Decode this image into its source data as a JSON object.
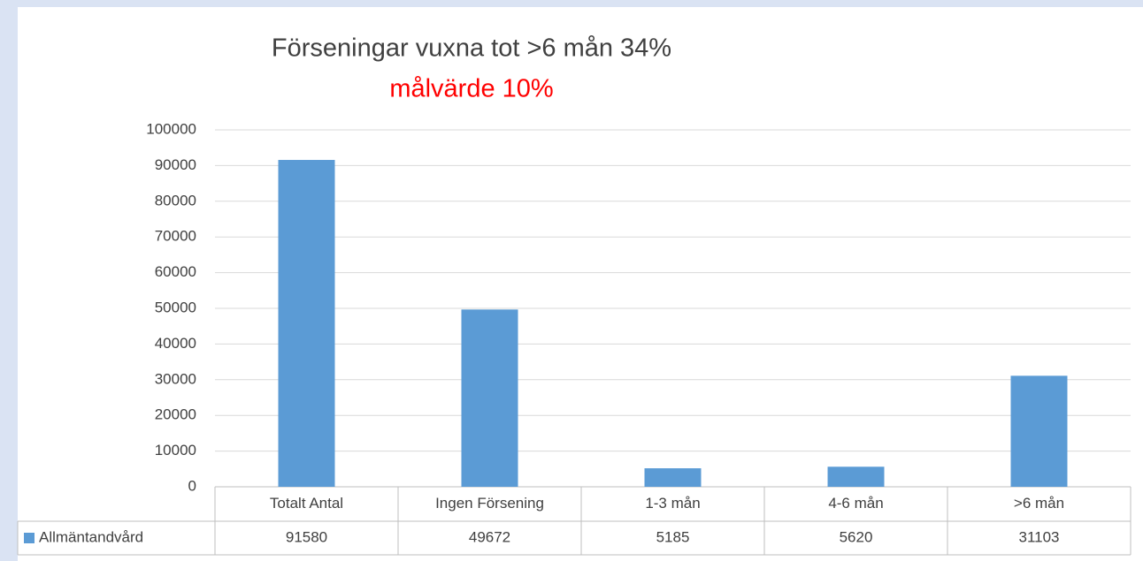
{
  "chart_data": {
    "type": "bar",
    "title": "Förseningar vuxna tot >6 mån 34%",
    "subtitle": "målvärde 10%",
    "categories": [
      "Totalt Antal",
      "Ingen Försening",
      "1-3 mån",
      "4-6 mån",
      ">6 mån"
    ],
    "series": [
      {
        "name": "Allmäntandvård",
        "color": "#5b9bd5",
        "values": [
          91580,
          49672,
          5185,
          5620,
          31103
        ]
      }
    ],
    "ylim": [
      0,
      100000
    ],
    "yticks": [
      0,
      10000,
      20000,
      30000,
      40000,
      50000,
      60000,
      70000,
      80000,
      90000,
      100000
    ],
    "grid": true,
    "data_table": true
  }
}
